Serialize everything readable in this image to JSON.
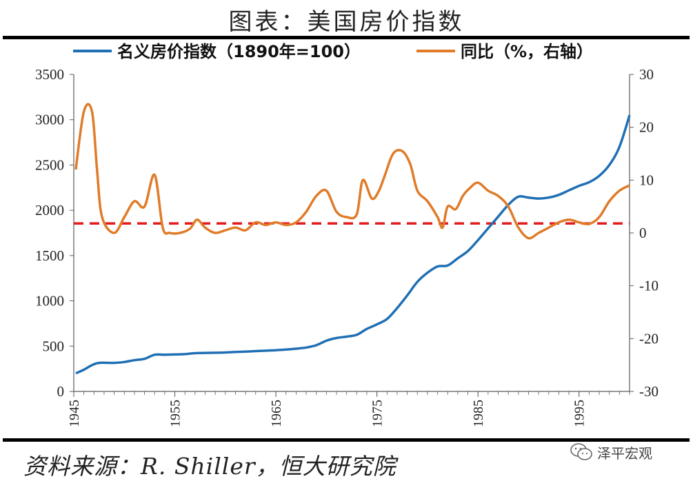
{
  "page": {
    "title": "图表：美国房价指数",
    "source": "资料来源：R. Shiller，恒大研究院",
    "watermark": "泽平宏观"
  },
  "colors": {
    "index": "#1F6FB4",
    "yoy": "#E07B28",
    "reference": "#E31A1C",
    "axis": "#595959"
  },
  "chart_data": {
    "type": "line",
    "title": "",
    "legend": {
      "placement": "top",
      "entries": [
        "名义房价指数（1890年=100）",
        "同比（%，右轴）"
      ]
    },
    "xlim": [
      1945,
      2000
    ],
    "xticks": [
      "1945",
      "1955",
      "1965",
      "1975",
      "1985",
      "1995"
    ],
    "ylim_left": [
      0,
      3500
    ],
    "yticks_left": [
      "3500",
      "3000",
      "2500",
      "2000",
      "1500",
      "1000",
      "500",
      "0"
    ],
    "ylim_right": [
      -30,
      30
    ],
    "yticks_right": [
      "30",
      "20",
      "10",
      "0",
      "-10",
      "-20",
      "-30"
    ],
    "grid": false,
    "reference_line": {
      "axis": "right",
      "value": 1.8,
      "style": "dashed"
    },
    "series": [
      {
        "name": "名义房价指数（1890年=100）",
        "axis": "left",
        "x": [
          1945.2,
          1946,
          1946.8,
          1947.5,
          1949,
          1950,
          1951,
          1952,
          1953,
          1954,
          1955,
          1956,
          1957,
          1958,
          1959,
          1960,
          1961,
          1962,
          1963,
          1964,
          1965,
          1966,
          1967,
          1968,
          1969,
          1970,
          1971,
          1972,
          1973,
          1974,
          1975,
          1976,
          1977,
          1978,
          1979,
          1980,
          1981,
          1982,
          1983,
          1984,
          1985,
          1986,
          1987,
          1988,
          1989,
          1990,
          1991,
          1992,
          1993,
          1994,
          1995,
          1996,
          1997,
          1998,
          1999,
          2000
        ],
        "values": [
          200,
          240,
          290,
          315,
          315,
          325,
          345,
          360,
          405,
          405,
          408,
          412,
          422,
          425,
          427,
          430,
          435,
          440,
          445,
          450,
          455,
          462,
          472,
          485,
          510,
          560,
          590,
          605,
          625,
          690,
          740,
          800,
          920,
          1060,
          1210,
          1310,
          1380,
          1390,
          1470,
          1550,
          1670,
          1800,
          1930,
          2060,
          2150,
          2140,
          2130,
          2140,
          2170,
          2220,
          2270,
          2310,
          2380,
          2500,
          2700,
          3050
        ]
      },
      {
        "name": "同比（%，右轴）",
        "axis": "right",
        "x": [
          1945.2,
          1946,
          1946.8,
          1947.3,
          1947.8,
          1949,
          1950,
          1951,
          1952,
          1953,
          1953.8,
          1954.5,
          1955.5,
          1956.5,
          1957.2,
          1958,
          1959,
          1960,
          1961,
          1962,
          1963,
          1964,
          1965,
          1966,
          1967,
          1968,
          1969,
          1970,
          1971,
          1972,
          1973,
          1973.6,
          1974.5,
          1975.2,
          1975.8,
          1976.6,
          1977.5,
          1978.3,
          1979,
          1980,
          1981,
          1981.5,
          1982,
          1982.8,
          1983.5,
          1984.2,
          1985,
          1986,
          1987,
          1988,
          1989,
          1990,
          1991,
          1992,
          1993,
          1994,
          1995,
          1996,
          1997,
          1998,
          1999,
          2000
        ],
        "values": [
          12,
          23,
          23,
          12,
          3,
          0,
          3,
          6,
          5,
          11,
          1,
          0,
          0,
          0.8,
          2.5,
          1,
          0,
          0.5,
          1,
          0.5,
          2,
          1.5,
          2,
          1.5,
          2,
          4,
          7,
          8,
          4,
          3,
          3.5,
          10,
          6.5,
          8,
          11,
          15,
          15.5,
          13,
          8,
          6,
          3,
          1,
          5,
          4.5,
          7,
          8.5,
          9.5,
          8,
          7,
          5,
          1,
          -1,
          0,
          1,
          2,
          2.5,
          2,
          1.7,
          3,
          6,
          8,
          9
        ]
      }
    ]
  }
}
